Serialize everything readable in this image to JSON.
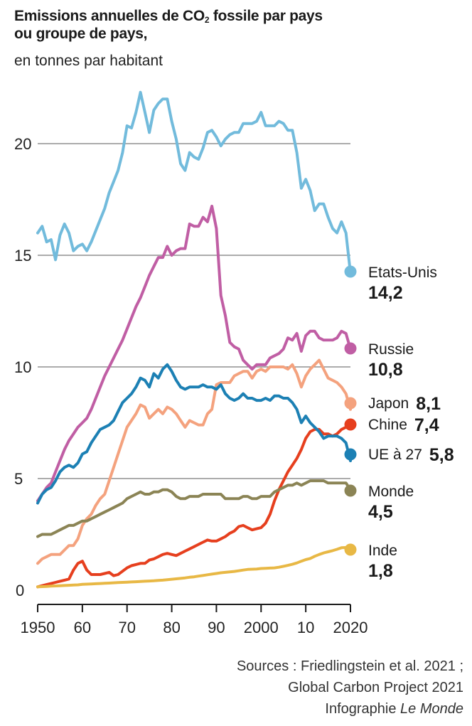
{
  "header": {
    "title_part1": "Emissions annuelles de CO",
    "title_sub": "2",
    "title_part2": " fossile par pays",
    "title_line2": "ou groupe de pays,",
    "subtitle": "en tonnes par habitant"
  },
  "footer": {
    "line1": "Sources : Friedlingstein et al. 2021 ;",
    "line2": "Global Carbon Project 2021",
    "line3_prefix": "Infographie ",
    "line3_italic": "Le Monde"
  },
  "chart_data": {
    "type": "line",
    "title": "Emissions annuelles de CO2 fossile par pays ou groupe de pays, en tonnes par habitant",
    "xlabel": "",
    "ylabel": "",
    "xlim": [
      1950,
      2020
    ],
    "ylim": [
      0,
      22.5
    ],
    "grid": true,
    "x_ticks": [
      1950,
      1960,
      1970,
      1980,
      1990,
      2000,
      2010,
      2020
    ],
    "x_tick_labels": [
      "1950",
      "60",
      "70",
      "80",
      "90",
      "2000",
      "10",
      "2020"
    ],
    "y_ticks": [
      0,
      5,
      10,
      15,
      20
    ],
    "y_tick_labels": [
      "0",
      "5",
      "10",
      "15",
      "20"
    ],
    "legend_placement": "right",
    "x": [
      1950,
      1951,
      1952,
      1953,
      1954,
      1955,
      1956,
      1957,
      1958,
      1959,
      1960,
      1961,
      1962,
      1963,
      1964,
      1965,
      1966,
      1967,
      1968,
      1969,
      1970,
      1971,
      1972,
      1973,
      1974,
      1975,
      1976,
      1977,
      1978,
      1979,
      1980,
      1981,
      1982,
      1983,
      1984,
      1985,
      1986,
      1987,
      1988,
      1989,
      1990,
      1991,
      1992,
      1993,
      1994,
      1995,
      1996,
      1997,
      1998,
      1999,
      2000,
      2001,
      2002,
      2003,
      2004,
      2005,
      2006,
      2007,
      2008,
      2009,
      2010,
      2011,
      2012,
      2013,
      2014,
      2015,
      2016,
      2017,
      2018,
      2019,
      2020
    ],
    "series": [
      {
        "name": "Etats-Unis",
        "label_value": "14,2",
        "color": "#72bbdc",
        "values": [
          16.0,
          16.3,
          15.6,
          15.7,
          14.8,
          15.9,
          16.4,
          16.0,
          15.2,
          15.4,
          15.5,
          15.2,
          15.6,
          16.1,
          16.6,
          17.1,
          17.8,
          18.3,
          18.8,
          19.6,
          20.8,
          20.7,
          21.4,
          22.3,
          21.4,
          20.5,
          21.5,
          21.8,
          22.0,
          22.0,
          21.0,
          20.2,
          19.1,
          18.8,
          19.6,
          19.4,
          19.3,
          19.8,
          20.5,
          20.6,
          20.3,
          19.9,
          20.2,
          20.4,
          20.5,
          20.5,
          20.9,
          20.9,
          20.9,
          21.0,
          21.4,
          20.8,
          20.8,
          20.8,
          21.0,
          20.9,
          20.6,
          20.6,
          19.6,
          18.0,
          18.4,
          17.9,
          17.0,
          17.3,
          17.3,
          16.7,
          16.2,
          16.0,
          16.5,
          16.0,
          14.2
        ]
      },
      {
        "name": "Russie",
        "label_value": "10,8",
        "color": "#c05ea4",
        "values": [
          4.0,
          4.3,
          4.6,
          4.8,
          5.3,
          5.8,
          6.3,
          6.7,
          7.0,
          7.3,
          7.5,
          7.7,
          8.1,
          8.6,
          9.1,
          9.6,
          10.0,
          10.4,
          10.8,
          11.2,
          11.7,
          12.2,
          12.7,
          13.1,
          13.6,
          14.1,
          14.5,
          14.9,
          14.9,
          15.4,
          15.0,
          15.2,
          15.3,
          15.3,
          16.4,
          16.3,
          16.3,
          16.7,
          16.5,
          17.2,
          16.2,
          13.2,
          12.3,
          11.1,
          10.9,
          10.8,
          10.3,
          10.1,
          9.9,
          10.1,
          10.1,
          10.1,
          10.4,
          10.5,
          10.6,
          10.8,
          11.3,
          11.2,
          11.5,
          10.7,
          11.4,
          11.6,
          11.6,
          11.3,
          11.2,
          11.2,
          11.2,
          11.3,
          11.6,
          11.5,
          10.8
        ]
      },
      {
        "name": "Japon",
        "label_value": "8,1",
        "color": "#f4a27e",
        "values": [
          1.2,
          1.4,
          1.5,
          1.6,
          1.6,
          1.6,
          1.8,
          2.0,
          2.0,
          2.3,
          2.9,
          3.2,
          3.4,
          3.8,
          4.1,
          4.3,
          4.9,
          5.5,
          6.1,
          6.7,
          7.3,
          7.6,
          7.9,
          8.3,
          8.2,
          7.7,
          7.9,
          8.1,
          7.9,
          8.2,
          8.1,
          7.9,
          7.6,
          7.3,
          7.6,
          7.5,
          7.4,
          7.4,
          7.9,
          8.1,
          9.2,
          9.3,
          9.3,
          9.3,
          9.6,
          9.7,
          9.8,
          9.8,
          9.5,
          9.8,
          9.9,
          9.8,
          10.0,
          10.0,
          10.0,
          10.0,
          9.9,
          10.1,
          9.7,
          9.1,
          9.6,
          9.9,
          10.1,
          10.3,
          9.9,
          9.5,
          9.4,
          9.3,
          9.1,
          8.8,
          8.1
        ]
      },
      {
        "name": "Chine",
        "label_value": "7,4",
        "color": "#e63f1e",
        "values": [
          0.15,
          0.2,
          0.25,
          0.3,
          0.35,
          0.4,
          0.45,
          0.5,
          0.9,
          1.2,
          1.3,
          0.9,
          0.7,
          0.7,
          0.7,
          0.75,
          0.8,
          0.65,
          0.7,
          0.85,
          1.0,
          1.1,
          1.15,
          1.2,
          1.2,
          1.35,
          1.4,
          1.5,
          1.6,
          1.65,
          1.6,
          1.55,
          1.65,
          1.75,
          1.85,
          1.95,
          2.05,
          2.15,
          2.25,
          2.2,
          2.2,
          2.3,
          2.4,
          2.55,
          2.65,
          2.85,
          2.9,
          2.8,
          2.7,
          2.75,
          2.8,
          3.0,
          3.4,
          4.0,
          4.5,
          4.9,
          5.3,
          5.6,
          5.9,
          6.3,
          6.8,
          7.1,
          7.2,
          7.2,
          7.0,
          7.0,
          6.9,
          7.0,
          7.2,
          7.3,
          7.4
        ]
      },
      {
        "name": "UE à 27",
        "label_value": "5,8",
        "color": "#1c80b4",
        "values": [
          3.9,
          4.3,
          4.5,
          4.6,
          4.9,
          5.3,
          5.5,
          5.6,
          5.5,
          5.7,
          6.1,
          6.2,
          6.6,
          6.9,
          7.2,
          7.3,
          7.4,
          7.6,
          8.0,
          8.4,
          8.6,
          8.8,
          9.1,
          9.5,
          9.4,
          9.1,
          9.7,
          9.5,
          9.9,
          10.1,
          9.8,
          9.4,
          9.1,
          9.0,
          9.1,
          9.1,
          9.1,
          9.2,
          9.1,
          9.1,
          9.0,
          9.2,
          8.8,
          8.6,
          8.5,
          8.6,
          8.8,
          8.6,
          8.6,
          8.5,
          8.5,
          8.6,
          8.5,
          8.7,
          8.7,
          8.6,
          8.6,
          8.4,
          8.1,
          7.5,
          7.8,
          7.5,
          7.3,
          7.1,
          6.8,
          6.9,
          6.9,
          6.9,
          6.8,
          6.6,
          5.8
        ]
      },
      {
        "name": "Monde",
        "label_value": "4,5",
        "color": "#8b8455",
        "values": [
          2.4,
          2.5,
          2.5,
          2.5,
          2.6,
          2.7,
          2.8,
          2.9,
          2.9,
          3.0,
          3.1,
          3.1,
          3.2,
          3.3,
          3.4,
          3.5,
          3.6,
          3.7,
          3.8,
          3.9,
          4.1,
          4.2,
          4.3,
          4.4,
          4.3,
          4.3,
          4.4,
          4.4,
          4.5,
          4.5,
          4.4,
          4.2,
          4.1,
          4.1,
          4.2,
          4.2,
          4.2,
          4.3,
          4.3,
          4.3,
          4.3,
          4.3,
          4.1,
          4.1,
          4.1,
          4.1,
          4.2,
          4.2,
          4.1,
          4.1,
          4.2,
          4.2,
          4.2,
          4.4,
          4.5,
          4.6,
          4.7,
          4.7,
          4.8,
          4.7,
          4.8,
          4.9,
          4.9,
          4.9,
          4.9,
          4.8,
          4.8,
          4.8,
          4.8,
          4.8,
          4.5
        ]
      },
      {
        "name": "Inde",
        "label_value": "1,8",
        "color": "#e8b845",
        "values": [
          0.15,
          0.16,
          0.17,
          0.18,
          0.19,
          0.2,
          0.21,
          0.22,
          0.23,
          0.24,
          0.26,
          0.27,
          0.28,
          0.29,
          0.3,
          0.31,
          0.32,
          0.33,
          0.34,
          0.35,
          0.36,
          0.37,
          0.38,
          0.39,
          0.4,
          0.41,
          0.42,
          0.44,
          0.45,
          0.47,
          0.49,
          0.51,
          0.53,
          0.55,
          0.58,
          0.6,
          0.63,
          0.66,
          0.69,
          0.72,
          0.75,
          0.78,
          0.8,
          0.82,
          0.84,
          0.87,
          0.9,
          0.93,
          0.94,
          0.95,
          0.97,
          0.98,
          0.99,
          1.0,
          1.03,
          1.07,
          1.11,
          1.16,
          1.22,
          1.3,
          1.37,
          1.42,
          1.52,
          1.6,
          1.67,
          1.72,
          1.77,
          1.83,
          1.9,
          1.91,
          1.8
        ]
      }
    ]
  }
}
